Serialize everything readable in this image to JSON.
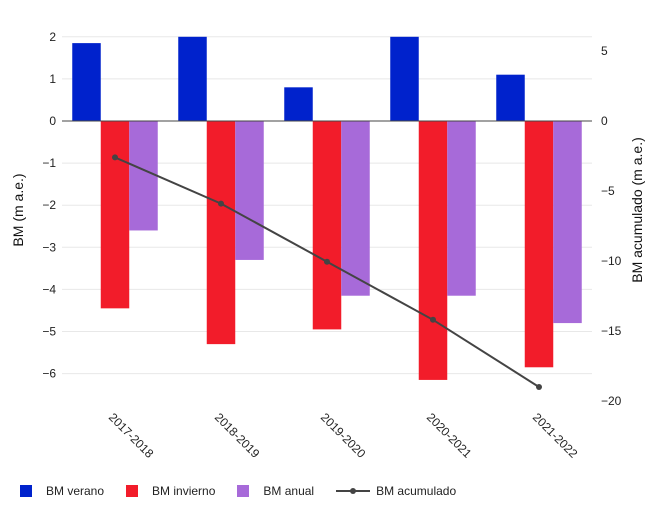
{
  "chart_data": {
    "type": "bar",
    "categories": [
      "2017-2018",
      "2018-2019",
      "2019-2020",
      "2020-2021",
      "2021-2022"
    ],
    "series": [
      {
        "name": "BM verano",
        "axis": "left",
        "kind": "bar",
        "color": "#0022cc",
        "values": [
          1.85,
          2.0,
          0.8,
          2.0,
          1.1
        ]
      },
      {
        "name": "BM invierno",
        "axis": "left",
        "kind": "bar",
        "color": "#f21c2a",
        "values": [
          -4.45,
          -5.3,
          -4.95,
          -6.15,
          -5.85
        ]
      },
      {
        "name": "BM anual",
        "axis": "left",
        "kind": "bar",
        "color": "#a76ad9",
        "values": [
          -2.6,
          -3.3,
          -4.15,
          -4.15,
          -4.8
        ]
      },
      {
        "name": "BM acumulado",
        "axis": "right",
        "kind": "line",
        "color": "#444444",
        "values": [
          -2.6,
          -5.9,
          -10.05,
          -14.2,
          -19.0
        ]
      }
    ],
    "ylabel": "BM (m a.e.)",
    "y2label": "BM acumulado (m a.e.)",
    "ylim": [
      -6.6,
      2.2
    ],
    "y2lim": [
      -20.0,
      5.0
    ],
    "yticks": [
      2,
      1,
      0,
      -1,
      -2,
      -3,
      -4,
      -5,
      -6
    ],
    "y2ticks": [
      5,
      0,
      -5,
      -10,
      -15,
      -20
    ],
    "ytick_labels": [
      "2",
      "1",
      "0",
      "−1",
      "−2",
      "−3",
      "−4",
      "−5",
      "−6"
    ],
    "y2tick_labels": [
      "5",
      "0",
      "−5",
      "−10",
      "−15",
      "−20"
    ],
    "legend": "bottom-left"
  }
}
